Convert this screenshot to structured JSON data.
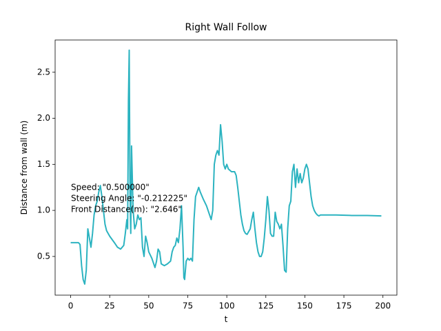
{
  "chart_data": {
    "type": "line",
    "title": "Right Wall Follow",
    "x_label": "t",
    "y_label": "Distance from wall (m)",
    "annotations": [
      "Speed: \"0.500000\"",
      "Steering Angle: \"-0.212225\"",
      "Front Distance(m): \"2.646\""
    ],
    "color": "#2bb3c0",
    "x": [
      0,
      5,
      6,
      7,
      8,
      9,
      10,
      11,
      12,
      13,
      14,
      15,
      16,
      17,
      18,
      19,
      20,
      21,
      22,
      23,
      25,
      28,
      30,
      32,
      34,
      35,
      36,
      36.5,
      37,
      37.5,
      38,
      38.5,
      39,
      40,
      41,
      42,
      43,
      44,
      45,
      46,
      47,
      48,
      49,
      50,
      52,
      54,
      55,
      56,
      57,
      58,
      60,
      62,
      64,
      65,
      66,
      67,
      68,
      69,
      70,
      71,
      72,
      72.5,
      73,
      74,
      75,
      76,
      77,
      78,
      79,
      80,
      81,
      82,
      83,
      85,
      87,
      89,
      90,
      91,
      92,
      93,
      94,
      95,
      96,
      97,
      98,
      99,
      100,
      101,
      103,
      105,
      106,
      107,
      108,
      109,
      110,
      111,
      112,
      113,
      115,
      116,
      117,
      118,
      119,
      120,
      121,
      122,
      123,
      124,
      125,
      126,
      127,
      128,
      129,
      130,
      131,
      132,
      133,
      134,
      135,
      136,
      137,
      138,
      139,
      140,
      141,
      142,
      143,
      144,
      145,
      146,
      147,
      148,
      149,
      150,
      151,
      152,
      153,
      154,
      155,
      156,
      157,
      158,
      159,
      160,
      170,
      180,
      190,
      199
    ],
    "values": [
      0.65,
      0.65,
      0.63,
      0.4,
      0.25,
      0.2,
      0.35,
      0.8,
      0.7,
      0.6,
      0.75,
      0.95,
      1.05,
      1.1,
      1.2,
      1.27,
      1.15,
      1.0,
      0.85,
      0.78,
      0.72,
      0.65,
      0.6,
      0.58,
      0.62,
      0.75,
      0.9,
      0.8,
      2.2,
      2.74,
      1.2,
      0.75,
      1.7,
      1.0,
      0.8,
      0.85,
      0.95,
      0.9,
      0.92,
      0.6,
      0.5,
      0.72,
      0.65,
      0.55,
      0.48,
      0.38,
      0.45,
      0.58,
      0.55,
      0.42,
      0.4,
      0.42,
      0.45,
      0.55,
      0.6,
      0.62,
      0.7,
      0.65,
      0.8,
      1.05,
      0.6,
      0.27,
      0.25,
      0.45,
      0.48,
      0.46,
      0.48,
      0.45,
      0.9,
      1.15,
      1.2,
      1.25,
      1.2,
      1.12,
      1.05,
      0.95,
      0.9,
      1.0,
      1.5,
      1.6,
      1.65,
      1.6,
      1.93,
      1.75,
      1.5,
      1.45,
      1.5,
      1.45,
      1.42,
      1.42,
      1.38,
      1.25,
      1.1,
      0.95,
      0.85,
      0.78,
      0.75,
      0.74,
      0.8,
      0.9,
      0.98,
      0.8,
      0.65,
      0.55,
      0.5,
      0.5,
      0.55,
      0.7,
      0.9,
      1.15,
      1.0,
      0.75,
      0.72,
      0.72,
      0.98,
      0.88,
      0.85,
      0.8,
      0.85,
      0.62,
      0.35,
      0.33,
      0.8,
      1.05,
      1.1,
      1.42,
      1.5,
      1.25,
      1.45,
      1.3,
      1.4,
      1.3,
      1.35,
      1.45,
      1.5,
      1.45,
      1.3,
      1.15,
      1.05,
      1.0,
      0.97,
      0.95,
      0.94,
      0.95,
      0.95,
      0.945,
      0.945,
      0.94
    ],
    "xlim": [
      -9.95,
      208.95
    ],
    "ylim": [
      0.08,
      2.85
    ],
    "xticks": [
      0,
      25,
      50,
      75,
      100,
      125,
      150,
      175,
      200
    ],
    "yticks": [
      0.5,
      {
        "value": 1.0,
        "label": "1.0"
      },
      1.5,
      {
        "value": 2.0,
        "label": "2.0"
      },
      2.5
    ],
    "grid": false
  }
}
